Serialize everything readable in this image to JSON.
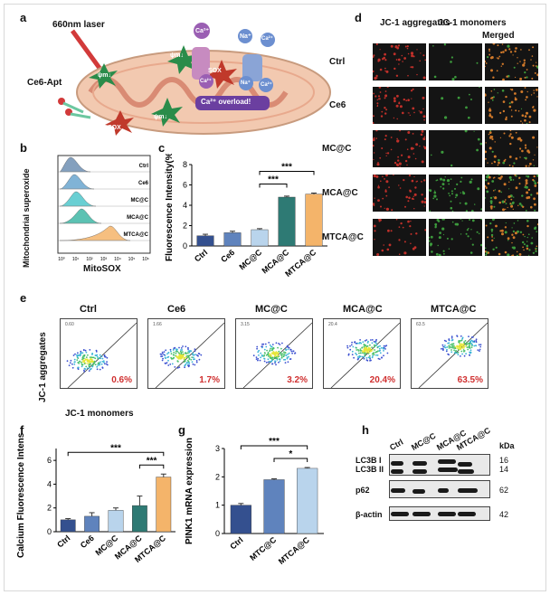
{
  "panels": {
    "a": "a",
    "b": "b",
    "c": "c",
    "d": "d",
    "e": "e",
    "f": "f",
    "g": "g",
    "h": "h"
  },
  "panel_a": {
    "laser": "660nm laser",
    "apt": "Ce6-Apt",
    "sox": "SOX",
    "psi": "ψm↓",
    "ca": "Ca²⁺",
    "na": "Na⁺",
    "overload": "Ca²⁺ overload!"
  },
  "panel_b": {
    "ylabel": "Mitochondrial superoxide",
    "xlabel": "MitoSOX",
    "groups": [
      "Ctrl",
      "Ce6",
      "MC@C",
      "MCA@C",
      "MTCA@C"
    ],
    "ticks": [
      "10⁰",
      "10¹",
      "10²",
      "10³",
      "10⁴",
      "10⁵",
      "10⁶"
    ],
    "colors": [
      "#6f8fb3",
      "#6aa6cf",
      "#4fc7cb",
      "#3fb7a6",
      "#f4b46a"
    ]
  },
  "panel_d": {
    "col_headers": [
      "JC-1 aggregates",
      "JC-1 monomers",
      "Merged"
    ],
    "rows": [
      "Ctrl",
      "Ce6",
      "MC@C",
      "MCA@C",
      "MTCA@C"
    ]
  },
  "panel_e": {
    "groups": [
      "Ctrl",
      "Ce6",
      "MC@C",
      "MCA@C",
      "MTCA@C"
    ],
    "percents": [
      "0.6%",
      "1.7%",
      "3.2%",
      "20.4%",
      "63.5%"
    ],
    "corner_values": [
      "0.60",
      "1.66",
      "3.15",
      "20.4",
      "63.5"
    ],
    "ylabel": "JC-1 aggregates",
    "xlabel": "JC-1 monomers"
  },
  "panel_h": {
    "samples": [
      "Ctrl",
      "MC@C",
      "MCA@C",
      "MTCA@C"
    ],
    "rows": [
      "LC3B I",
      "LC3B II",
      "p62",
      "β-actin"
    ],
    "kda_title": "kDa",
    "kda": [
      "16",
      "14",
      "62",
      "42"
    ]
  },
  "chart_data": [
    {
      "id": "c",
      "type": "bar",
      "ylabel": "Fluorescence Intensity(%)",
      "categories": [
        "Ctrl",
        "Ce6",
        "MC@C",
        "MCA@C",
        "MTCA@C"
      ],
      "values": [
        1.0,
        1.3,
        1.6,
        4.8,
        5.1
      ],
      "errors": [
        0.15,
        0.15,
        0.1,
        0.1,
        0.1
      ],
      "colors": [
        "#34508f",
        "#5f83bd",
        "#b9d4ec",
        "#2e7a74",
        "#f4b46a"
      ],
      "ylim": [
        0,
        8
      ],
      "yticks": [
        0,
        2,
        4,
        6,
        8
      ],
      "sig": [
        {
          "from": 2,
          "to": 3,
          "label": "***"
        },
        {
          "from": 2,
          "to": 4,
          "label": "***"
        }
      ]
    },
    {
      "id": "f",
      "type": "bar",
      "ylabel": "Calcium Fluorescence Intensity",
      "categories": [
        "Ctrl",
        "Ce6",
        "MC@C",
        "MCA@C",
        "MTCA@C"
      ],
      "values": [
        1.0,
        1.3,
        1.8,
        2.2,
        4.6
      ],
      "errors": [
        0.1,
        0.3,
        0.2,
        0.8,
        0.25
      ],
      "colors": [
        "#34508f",
        "#5f83bd",
        "#b9d4ec",
        "#2e7a74",
        "#f4b46a"
      ],
      "ylim": [
        0,
        7
      ],
      "yticks": [
        0,
        2,
        4,
        6
      ],
      "sig": [
        {
          "from": 0,
          "to": 4,
          "label": "***"
        },
        {
          "from": 3,
          "to": 4,
          "label": "***"
        }
      ]
    },
    {
      "id": "g",
      "type": "bar",
      "ylabel": "PINK1 mRNA expression",
      "categories": [
        "Ctrl",
        "MTC@C",
        "MTCA@C"
      ],
      "values": [
        1.0,
        1.9,
        2.3
      ],
      "errors": [
        0.06,
        0.03,
        0.03
      ],
      "colors": [
        "#34508f",
        "#5f83bd",
        "#b9d4ec"
      ],
      "ylim": [
        0,
        3
      ],
      "yticks": [
        0,
        1,
        2,
        3
      ],
      "sig": [
        {
          "from": 0,
          "to": 2,
          "label": "***"
        },
        {
          "from": 1,
          "to": 2,
          "label": "*"
        }
      ]
    }
  ]
}
